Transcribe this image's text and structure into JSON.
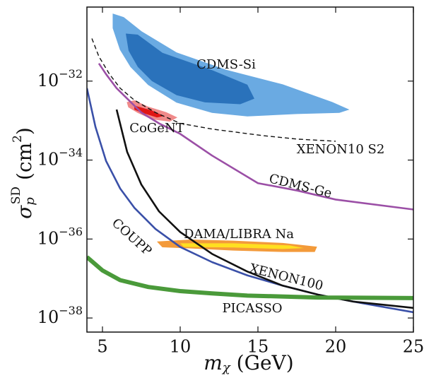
{
  "chart_data": {
    "type": "line",
    "xlabel": [
      "m",
      "χ",
      " (GeV)"
    ],
    "ylabel": [
      "σ",
      "p",
      "SD",
      " (cm",
      "2",
      ")"
    ],
    "xlim": [
      4,
      25
    ],
    "xticks": [
      5,
      10,
      15,
      20,
      25
    ],
    "ylim": [
      4.4e-39,
      7.5e-31
    ],
    "ylog": true,
    "yticks": [
      {
        "value": 1e-38,
        "label": "10−38"
      },
      {
        "value": 1e-36,
        "label": "10−36"
      },
      {
        "value": 1e-34,
        "label": "10−34"
      },
      {
        "value": 1e-32,
        "label": "10−32"
      }
    ],
    "series": [
      {
        "name": "CDMS-Si",
        "kind": "region",
        "regions": [
          {
            "color": "#6aaae2",
            "x": [
              5.68,
              6.36,
              7.5,
              9.77,
              12.95,
              16.59,
              19.77,
              20.82,
              20.23,
              17.5,
              14.32,
              12.05,
              9.77,
              7.95,
              6.82,
              6.14,
              5.68
            ],
            "y": [
              5e-31,
              4.1e-31,
              1.8e-31,
              5.2e-32,
              1.9e-32,
              8.1e-33,
              2.9e-33,
              1.9e-33,
              1.6e-33,
              1.5e-33,
              1.3e-33,
              1.6e-33,
              2.9e-33,
              8.1e-33,
              2.3e-32,
              6.3e-32,
              2.2e-31
            ]
          },
          {
            "color": "#2a72bb",
            "x": [
              6.5,
              7.27,
              8.86,
              12.05,
              14.32,
              14.77,
              13.86,
              11.59,
              9.77,
              8.18,
              7.27,
              6.68
            ],
            "y": [
              1.6e-31,
              1.5e-31,
              5.2e-32,
              1.9e-32,
              8.1e-33,
              3.6e-33,
              2.6e-33,
              2.9e-33,
              4.4e-33,
              1e-32,
              2.3e-32,
              5.9e-32
            ]
          }
        ]
      },
      {
        "name": "CoGeNT",
        "kind": "region",
        "regions": [
          {
            "color": "#f08a8a",
            "x": [
              6.59,
              7.05,
              7.95,
              9.09,
              9.77,
              9.32,
              8.18,
              7.27,
              6.68
            ],
            "y": [
              2.9e-33,
              3.2e-33,
              2.2e-33,
              1.6e-33,
              1.2e-33,
              9.6e-34,
              1.1e-33,
              1.6e-33,
              2.2e-33
            ]
          },
          {
            "color": "#e01515",
            "x": [
              7.05,
              8.18,
              8.95,
              8.5,
              7.5,
              7.05
            ],
            "y": [
              2.4e-33,
              1.8e-33,
              1.3e-33,
              1.2e-33,
              1.6e-33,
              1.9e-33
            ]
          }
        ]
      },
      {
        "name": "XENON10 S2",
        "kind": "line",
        "color": "#111111",
        "dash": true,
        "x": [
          4.32,
          4.77,
          5.45,
          6.14,
          7.05,
          8.41,
          10,
          12.05,
          15.23,
          17.5,
          20
        ],
        "values": [
          1.2e-31,
          4.2e-32,
          1.5e-32,
          6.6e-33,
          3.3e-33,
          1.6e-33,
          8.5e-34,
          6.1e-34,
          4.2e-34,
          3.4e-34,
          3e-34
        ]
      },
      {
        "name": "CDMS-Ge",
        "kind": "line",
        "color": "#9b4fa6",
        "x": [
          4.77,
          5.23,
          5.91,
          6.59,
          7.5,
          8.64,
          10,
          12.05,
          15,
          17.5,
          20,
          25
        ],
        "values": [
          2.8e-32,
          1.5e-32,
          6.6e-33,
          3.6e-33,
          1.6e-33,
          8.5e-34,
          4.6e-34,
          1.3e-34,
          2.6e-35,
          1.7e-35,
          1e-35,
          5.6e-36
        ]
      },
      {
        "name": "DAMA/LIBRA Na",
        "kind": "region",
        "regions": [
          {
            "color": "#f39a3a",
            "x": [
              8.55,
              10.68,
              13.41,
              16.59,
              18.77,
              18.64,
              16.59,
              13.41,
              10.68,
              8.86
            ],
            "y": [
              8.5e-37,
              9.5e-37,
              8.9e-37,
              7.8e-37,
              6.3e-37,
              4.8e-37,
              4.8e-37,
              5.2e-37,
              5.9e-37,
              6.3e-37
            ]
          },
          {
            "color": "#ffe020",
            "x": [
              10,
              13.41,
              17.05,
              17.95,
              16.59,
              13.41,
              10.23
            ],
            "y": [
              7.8e-37,
              7.8e-37,
              6.9e-37,
              5.9e-37,
              5.6e-37,
              6.1e-37,
              6.3e-37
            ]
          }
        ]
      },
      {
        "name": "COUPP",
        "kind": "line",
        "color": "#3a50a8",
        "x": [
          4,
          4.55,
          5.23,
          6.14,
          7.05,
          8.41,
          10,
          12.05,
          14.32,
          16.59,
          18.86,
          21.14,
          25
        ],
        "values": [
          6.6e-33,
          6.9e-34,
          9.5e-35,
          1.9e-35,
          6.2e-36,
          1.8e-36,
          6.3e-37,
          2.6e-37,
          1.2e-37,
          6.6e-38,
          3.9e-38,
          2.6e-38,
          1.4e-38
        ]
      },
      {
        "name": "XENON100",
        "kind": "line",
        "color": "#111111",
        "x": [
          5.91,
          6.59,
          7.5,
          8.64,
          10,
          12.05,
          14.32,
          16.59,
          18.86,
          21.14,
          25
        ],
        "values": [
          1.9e-33,
          1.6e-34,
          2.4e-35,
          5e-36,
          1.5e-36,
          4.2e-37,
          1.5e-37,
          6.6e-38,
          3.9e-38,
          2.6e-38,
          1.8e-38
        ]
      },
      {
        "name": "PICASSO",
        "kind": "band",
        "color": "#4a9a3a",
        "x": [
          4,
          5,
          6.14,
          7.95,
          10,
          12.05,
          14.32,
          18.86,
          25
        ],
        "values": [
          3.5e-37,
          1.6e-37,
          9.1e-38,
          6.1e-38,
          4.8e-38,
          4.2e-38,
          3.7e-38,
          3.3e-38,
          3.2e-38
        ]
      }
    ]
  }
}
